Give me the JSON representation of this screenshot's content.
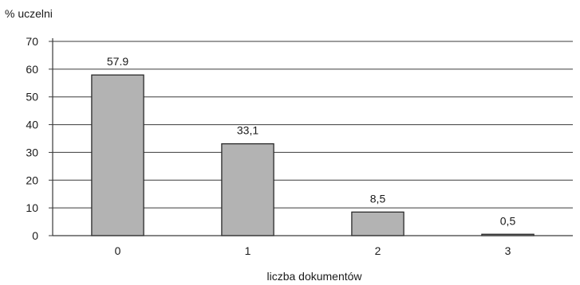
{
  "chart_data": {
    "type": "bar",
    "categories": [
      "0",
      "1",
      "2",
      "3"
    ],
    "values": [
      57.9,
      33.1,
      8.5,
      0.5
    ],
    "data_labels": [
      "57.9",
      "33,1",
      "8,5",
      "0,5"
    ],
    "ylabel": "% uczelni",
    "xlabel": "liczba dokumentów",
    "ylim": [
      0,
      70
    ],
    "yticks": [
      0,
      10,
      20,
      30,
      40,
      50,
      60,
      70
    ],
    "grid": true,
    "bar_color": "#b3b3b3",
    "bar_edge_color": "#2a2a2a",
    "grid_color": "#3a3a3a"
  }
}
